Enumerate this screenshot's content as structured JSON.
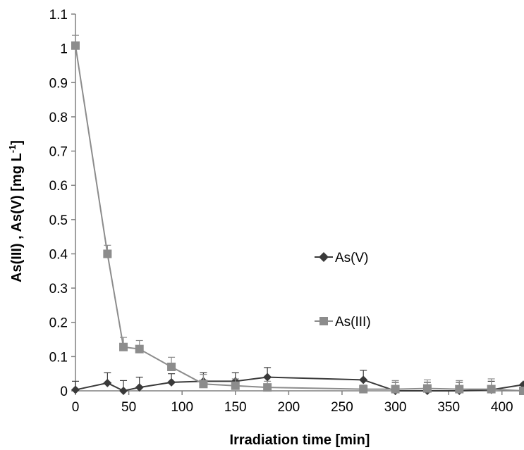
{
  "chart_data": {
    "type": "line",
    "xlabel": "Irradiation time [min]",
    "ylabel": "As(III) , As(V) [mg L",
    "ylabel_sup": "-1",
    "ylabel_end": "]",
    "xlim": [
      0,
      420
    ],
    "ylim": [
      0,
      1.1
    ],
    "x_ticks": [
      0,
      50,
      100,
      150,
      200,
      250,
      300,
      350,
      400
    ],
    "y_ticks": [
      0,
      0.1,
      0.2,
      0.3,
      0.4,
      0.5,
      0.6,
      0.7,
      0.8,
      0.9,
      1,
      1.1
    ],
    "x_tick_labels": [
      "0",
      "50",
      "100",
      "150",
      "200",
      "250",
      "300",
      "350",
      "400"
    ],
    "y_tick_labels": [
      "0",
      "0.1",
      "0.2",
      "0.3",
      "0.4",
      "0.5",
      "0.6",
      "0.7",
      "0.8",
      "0.9",
      "1",
      "1.1"
    ],
    "grid": false,
    "legend_position": "center-right",
    "series": [
      {
        "name": "As(V)",
        "marker": "diamond",
        "color": "#3a3a3a",
        "x": [
          0,
          30,
          45,
          60,
          90,
          120,
          150,
          180,
          270,
          300,
          330,
          360,
          390,
          420
        ],
        "y": [
          0.003,
          0.023,
          0.0,
          0.01,
          0.025,
          0.028,
          0.028,
          0.04,
          0.032,
          0.0,
          0.0,
          0.0,
          0.003,
          0.018
        ],
        "err": [
          0.025,
          0.03,
          0.03,
          0.03,
          0.025,
          0.025,
          0.025,
          0.028,
          0.028,
          0.025,
          0.025,
          0.025,
          0.025,
          0.0
        ]
      },
      {
        "name": "As(III)",
        "marker": "square",
        "color": "#8c8c8c",
        "x": [
          0,
          30,
          45,
          60,
          90,
          120,
          150,
          180,
          270,
          300,
          330,
          360,
          390,
          420
        ],
        "y": [
          1.008,
          0.4,
          0.128,
          0.122,
          0.07,
          0.02,
          0.015,
          0.01,
          0.005,
          0.005,
          0.007,
          0.005,
          0.005,
          0.0
        ],
        "err": [
          0.03,
          0.025,
          0.028,
          0.025,
          0.028,
          0.028,
          0.02,
          0.018,
          0.012,
          0.025,
          0.025,
          0.025,
          0.03,
          0.0
        ]
      }
    ]
  }
}
